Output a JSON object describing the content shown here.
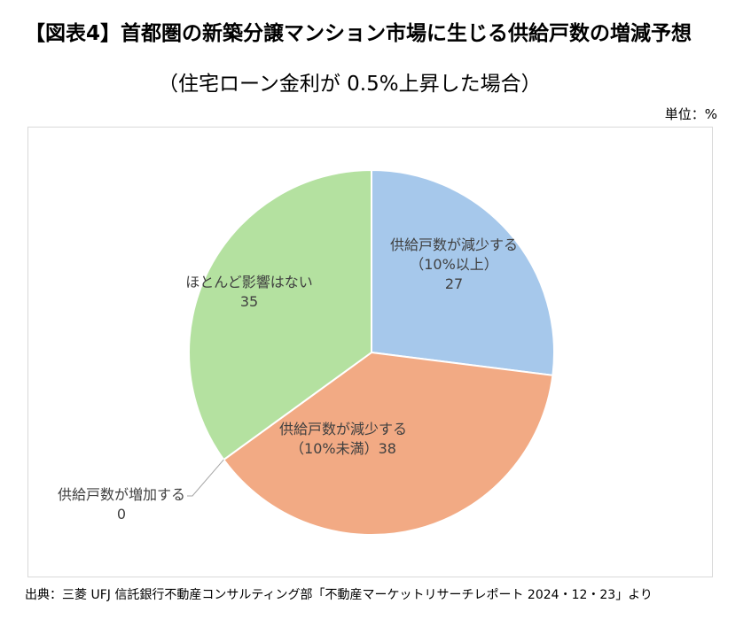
{
  "title": "【図表4】首都圏の新築分譲マンション市場に生じる供給戸数の増減予想",
  "subtitle": "（住宅ローン金利が 0.5%上昇した場合）",
  "unit_label": "単位：%",
  "source": "出典：三菱 UFJ 信託銀行不動産コンサルティング部「不動産マーケットリサーチレポート 2024・12・23」より",
  "chart_data": {
    "type": "pie",
    "title": "【図表4】首都圏の新築分譲マンション市場に生じる供給戸数の増減予想",
    "subtitle": "（住宅ローン金利が 0.5%上昇した場合）",
    "unit": "%",
    "slices": [
      {
        "label_lines": [
          "供給戸数が減少する",
          "（10%以上）",
          "27"
        ],
        "category": "供給戸数が減少する（10%以上）",
        "value": 27,
        "color": "#a6c8eb"
      },
      {
        "label_lines": [
          "供給戸数が減少する",
          "（10%未満）38"
        ],
        "category": "供給戸数が減少する（10%未満）",
        "value": 38,
        "color": "#f2aa84"
      },
      {
        "label_lines": [
          "供給戸数が増加する",
          "0"
        ],
        "category": "供給戸数が増加する",
        "value": 0,
        "color": "#c9c9c9"
      },
      {
        "label_lines": [
          "ほとんど影響はない",
          "35"
        ],
        "category": "ほとんど影響はない",
        "value": 35,
        "color": "#b4e1a0"
      }
    ],
    "start_angle": "12 o'clock",
    "direction": "clockwise",
    "legend": "none"
  }
}
